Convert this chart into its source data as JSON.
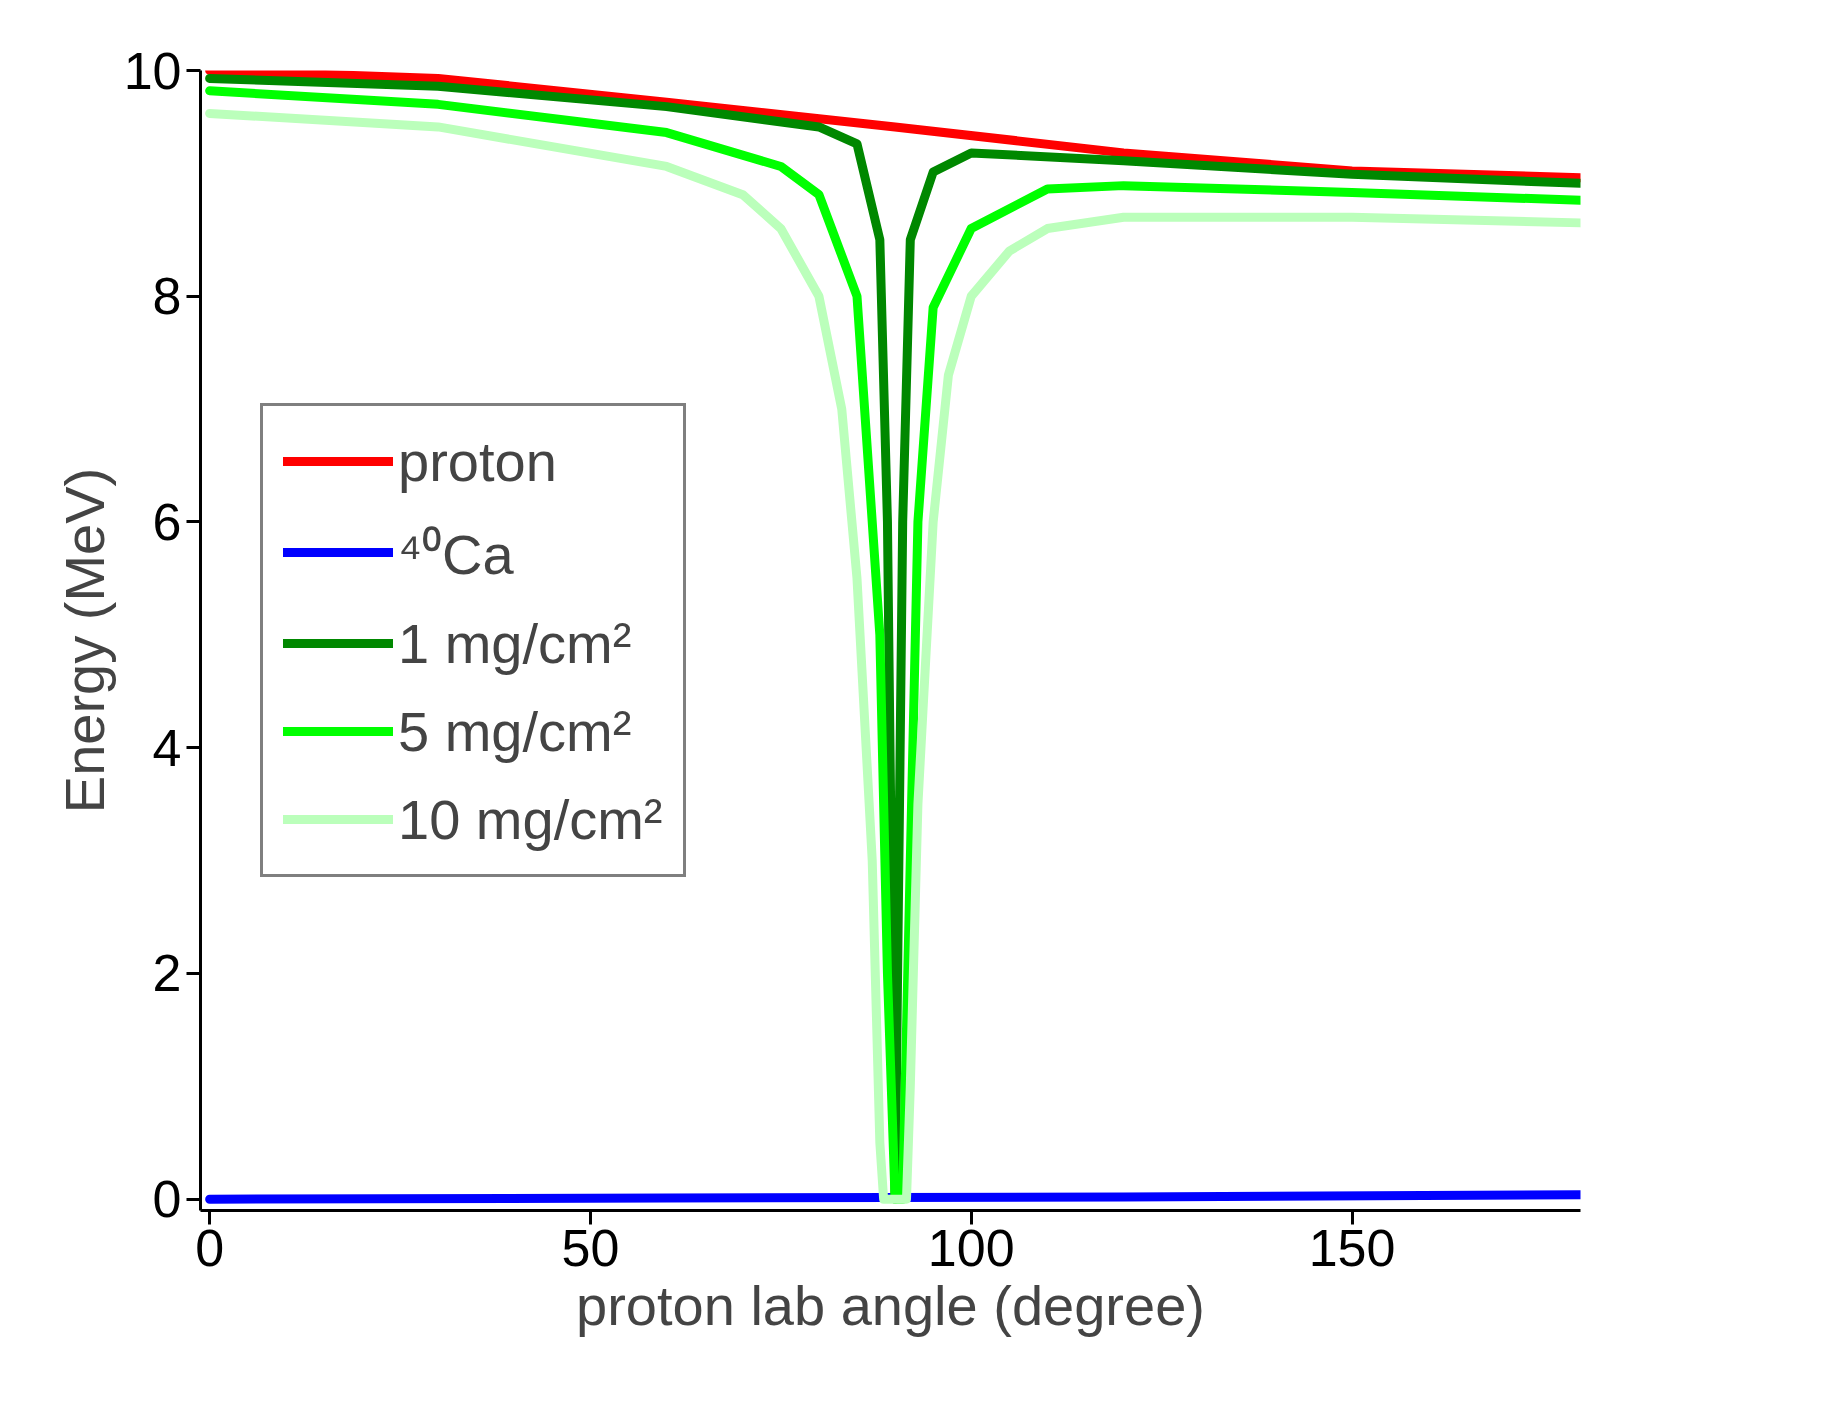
{
  "chart_data": {
    "type": "line",
    "xlabel": "proton lab angle (degree)",
    "ylabel": "Energy (MeV)",
    "xlim": [
      -1.2,
      180
    ],
    "ylim": [
      -0.1,
      10
    ],
    "xticks": [
      0,
      50,
      100,
      150
    ],
    "yticks": [
      0,
      2,
      4,
      6,
      8,
      10
    ],
    "grid": false,
    "legend": "left",
    "line_style": "solid",
    "marker": "none",
    "series": [
      {
        "name": "proton",
        "color": "#ff0000",
        "x": [
          0,
          30,
          60,
          90,
          120,
          150,
          180
        ],
        "values": [
          10,
          9.93,
          9.72,
          9.5,
          9.27,
          9.11,
          9.05
        ]
      },
      {
        "name": "⁴⁰Ca",
        "color": "#0000ff",
        "x": [
          0,
          60,
          120,
          180
        ],
        "values": [
          0,
          0.01,
          0.02,
          0.04
        ]
      },
      {
        "name": "1 mg/cm²",
        "color": "#008800",
        "x": [
          0,
          30,
          60,
          80,
          85,
          88,
          89,
          90,
          91,
          92,
          95,
          100,
          120,
          150,
          180
        ],
        "values": [
          9.93,
          9.86,
          9.68,
          9.5,
          9.35,
          8.5,
          6,
          0,
          6,
          8.5,
          9.1,
          9.27,
          9.2,
          9.08,
          9.0
        ]
      },
      {
        "name": "5 mg/cm²",
        "color": "#00ff00",
        "x": [
          0,
          30,
          60,
          75,
          80,
          85,
          88,
          89,
          90,
          91,
          92,
          93,
          95,
          100,
          110,
          120,
          150,
          180
        ],
        "values": [
          9.82,
          9.7,
          9.45,
          9.15,
          8.9,
          8.0,
          5,
          2,
          0,
          0,
          3,
          6,
          7.9,
          8.6,
          8.95,
          8.98,
          8.92,
          8.85
        ]
      },
      {
        "name": "10 mg/cm²",
        "color": "#bbffbb",
        "x": [
          0,
          30,
          60,
          70,
          75,
          80,
          83,
          85,
          87,
          88,
          88.5,
          91.5,
          92,
          93,
          95,
          97,
          100,
          105,
          110,
          120,
          150,
          180
        ],
        "values": [
          9.62,
          9.5,
          9.15,
          8.9,
          8.6,
          8.0,
          7,
          5.5,
          3,
          0.5,
          0,
          0,
          1,
          3.5,
          6,
          7.3,
          8.0,
          8.4,
          8.6,
          8.7,
          8.7,
          8.65
        ]
      }
    ]
  }
}
